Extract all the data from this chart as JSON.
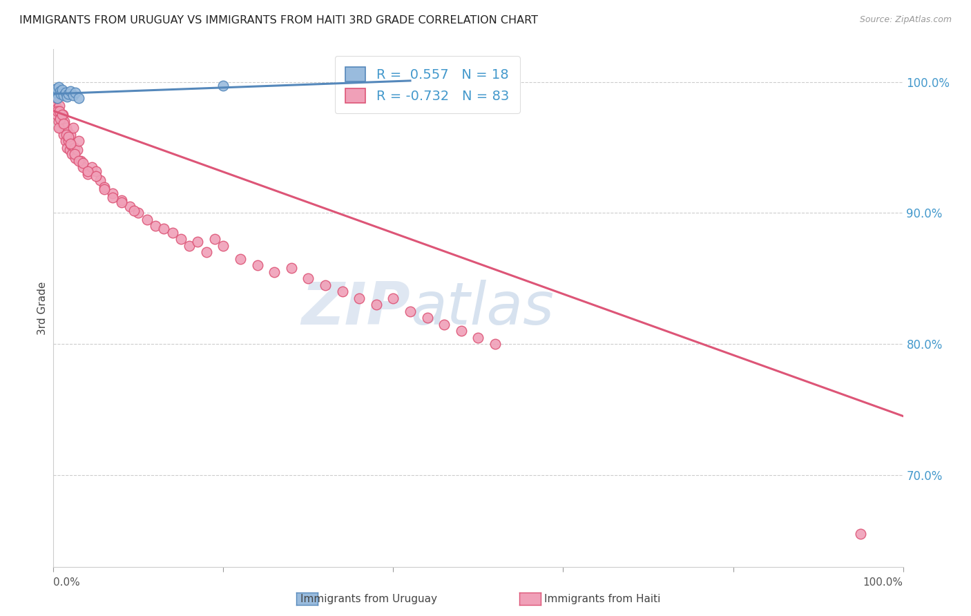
{
  "title": "IMMIGRANTS FROM URUGUAY VS IMMIGRANTS FROM HAITI 3RD GRADE CORRELATION CHART",
  "source": "Source: ZipAtlas.com",
  "ylabel": "3rd Grade",
  "xlim": [
    0.0,
    100.0
  ],
  "ylim": [
    63.0,
    102.5
  ],
  "right_ytick_labels": [
    "100.0%",
    "90.0%",
    "80.0%",
    "70.0%"
  ],
  "right_ytick_positions": [
    100.0,
    90.0,
    80.0,
    70.0
  ],
  "gridlines": [
    100.0,
    90.0,
    80.0,
    70.0
  ],
  "legend_uruguay_R": "0.557",
  "legend_uruguay_N": "18",
  "legend_haiti_R": "-0.732",
  "legend_haiti_N": "83",
  "legend_label_uruguay": "Immigrants from Uruguay",
  "legend_label_haiti": "Immigrants from Haiti",
  "watermark_zip": "ZIP",
  "watermark_atlas": "atlas",
  "watermark_color_zip": "#d0dff0",
  "watermark_color_atlas": "#b8cce8",
  "title_color": "#222222",
  "source_color": "#999999",
  "blue_line_color": "#5588bb",
  "blue_marker_face": "#99bbdd",
  "blue_marker_edge": "#5588bb",
  "pink_line_color": "#dd5577",
  "pink_marker_face": "#f0a0b8",
  "pink_marker_edge": "#dd5577",
  "right_axis_color": "#4499cc",
  "axis_label_color": "#444444",
  "uruguay_scatter_x": [
    0.2,
    0.4,
    0.5,
    0.6,
    0.8,
    0.9,
    1.0,
    1.2,
    1.4,
    1.6,
    1.8,
    2.0,
    2.3,
    2.6,
    3.0,
    20.0,
    34.0,
    40.0
  ],
  "uruguay_scatter_y": [
    99.2,
    99.5,
    98.8,
    99.6,
    99.3,
    99.1,
    99.4,
    99.0,
    99.2,
    98.9,
    99.1,
    99.3,
    99.0,
    99.2,
    98.8,
    99.7,
    99.5,
    100.0
  ],
  "haiti_scatter_x": [
    0.2,
    0.3,
    0.4,
    0.5,
    0.6,
    0.7,
    0.8,
    0.9,
    1.0,
    1.1,
    1.2,
    1.3,
    1.4,
    1.5,
    1.6,
    1.7,
    1.8,
    1.9,
    2.0,
    2.1,
    2.2,
    2.3,
    2.5,
    2.6,
    2.8,
    3.0,
    3.2,
    3.5,
    4.0,
    4.5,
    5.0,
    5.5,
    6.0,
    7.0,
    8.0,
    9.0,
    10.0,
    11.0,
    12.0,
    13.0,
    14.0,
    15.0,
    16.0,
    17.0,
    18.0,
    19.0,
    20.0,
    22.0,
    24.0,
    26.0,
    28.0,
    30.0,
    32.0,
    34.0,
    36.0,
    38.0,
    40.0,
    42.0,
    44.0,
    46.0,
    48.0,
    50.0,
    52.0,
    0.4,
    0.5,
    0.6,
    0.7,
    0.8,
    1.0,
    1.2,
    1.5,
    1.8,
    2.0,
    2.5,
    3.0,
    3.5,
    4.0,
    5.0,
    6.0,
    7.0,
    8.0,
    9.5,
    95.0
  ],
  "haiti_scatter_y": [
    98.5,
    99.0,
    97.5,
    98.0,
    97.0,
    98.2,
    96.5,
    97.3,
    96.8,
    97.5,
    96.0,
    97.0,
    95.5,
    96.5,
    95.0,
    96.2,
    95.5,
    94.8,
    96.0,
    95.2,
    94.5,
    96.5,
    95.0,
    94.2,
    94.8,
    95.5,
    94.0,
    93.5,
    93.0,
    93.5,
    93.2,
    92.5,
    92.0,
    91.5,
    91.0,
    90.5,
    90.0,
    89.5,
    89.0,
    88.8,
    88.5,
    88.0,
    87.5,
    87.8,
    87.0,
    88.0,
    87.5,
    86.5,
    86.0,
    85.5,
    85.8,
    85.0,
    84.5,
    84.0,
    83.5,
    83.0,
    83.5,
    82.5,
    82.0,
    81.5,
    81.0,
    80.5,
    80.0,
    98.8,
    97.8,
    96.5,
    97.8,
    97.2,
    97.5,
    96.8,
    96.0,
    95.8,
    95.3,
    94.5,
    94.0,
    93.8,
    93.2,
    92.8,
    91.8,
    91.2,
    90.8,
    90.2,
    65.5
  ],
  "haiti_trendline_start_x": 0.0,
  "haiti_trendline_start_y": 97.8,
  "haiti_trendline_end_x": 100.0,
  "haiti_trendline_end_y": 74.5,
  "uruguay_trendline_start_x": 0.0,
  "uruguay_trendline_start_y": 99.1,
  "uruguay_trendline_end_x": 42.0,
  "uruguay_trendline_end_y": 100.1
}
